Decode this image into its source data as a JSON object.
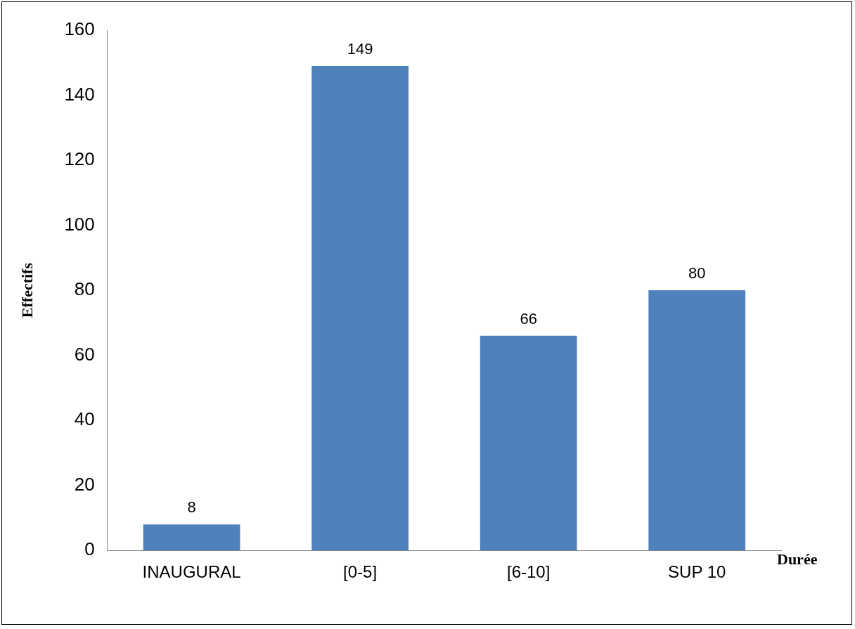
{
  "chart_data": {
    "type": "bar",
    "xlabel": "Durée",
    "ylabel": "Effectifs",
    "categories": [
      "INAUGURAL",
      "[0-5]",
      "[6-10]",
      "SUP 10"
    ],
    "values": [
      8,
      149,
      66,
      80
    ],
    "color": "#4f81bd",
    "ylim": [
      0,
      160
    ],
    "yticks": [
      0,
      20,
      40,
      60,
      80,
      100,
      120,
      140,
      160
    ],
    "grid": false,
    "legend": false,
    "data_labels": true
  }
}
